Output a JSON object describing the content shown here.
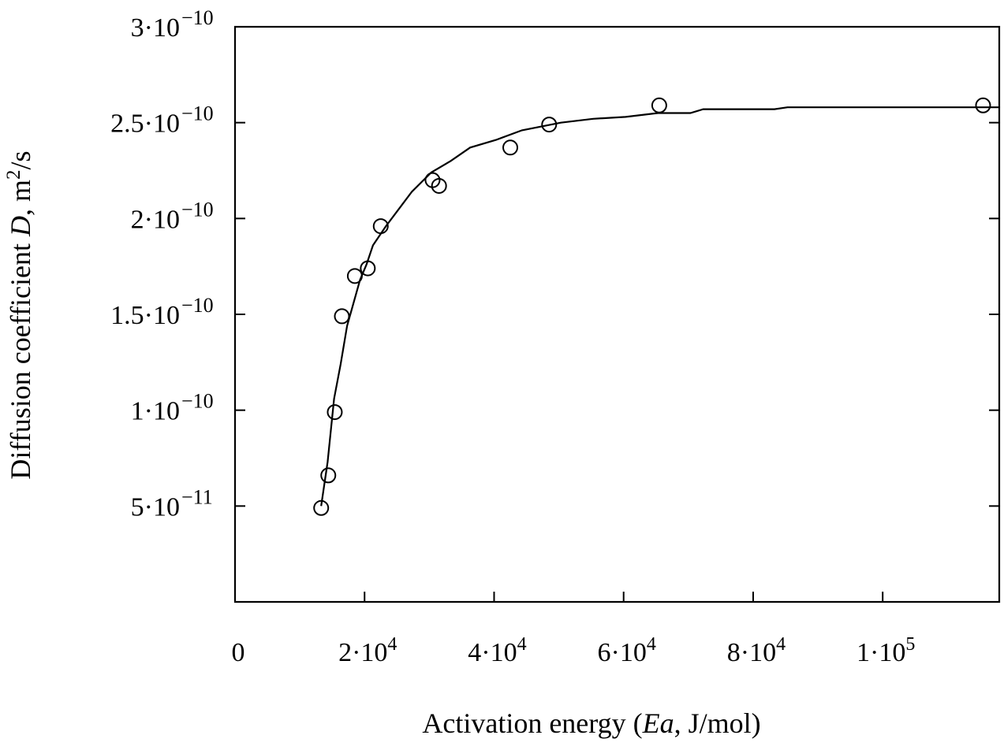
{
  "chart_data": {
    "type": "scatter",
    "title": "",
    "xlabel": "Activation energy (Ea, J/mol)",
    "ylabel": "Diffusion coefficient D, m²/s",
    "xlim": [
      0,
      118000
    ],
    "ylim": [
      0,
      3e-10
    ],
    "grid": false,
    "x_ticks": [
      {
        "value": 0,
        "label": "0"
      },
      {
        "value": 20000,
        "label": "2·10⁴"
      },
      {
        "value": 40000,
        "label": "4·10⁴"
      },
      {
        "value": 60000,
        "label": "6·10⁴"
      },
      {
        "value": 80000,
        "label": "8·10⁴"
      },
      {
        "value": 100000,
        "label": "1·10⁵"
      }
    ],
    "y_ticks": [
      {
        "value": 5e-11,
        "label": "5·10⁻¹¹"
      },
      {
        "value": 1e-10,
        "label": "1·10⁻¹⁰"
      },
      {
        "value": 1.5e-10,
        "label": "1.5·10⁻¹⁰"
      },
      {
        "value": 2e-10,
        "label": "2·10⁻¹⁰"
      },
      {
        "value": 2.5e-10,
        "label": "2.5·10⁻¹⁰"
      },
      {
        "value": 3e-10,
        "label": "3·10⁻¹⁰"
      }
    ],
    "series": [
      {
        "kind": "points",
        "marker": "open-circle",
        "points": [
          [
            13300,
            4.9e-11
          ],
          [
            14400,
            6.6e-11
          ],
          [
            15400,
            9.9e-11
          ],
          [
            16500,
            1.49e-10
          ],
          [
            18500,
            1.7e-10
          ],
          [
            20500,
            1.74e-10
          ],
          [
            22500,
            1.96e-10
          ],
          [
            30500,
            2.2e-10
          ],
          [
            31500,
            2.17e-10
          ],
          [
            42500,
            2.37e-10
          ],
          [
            48500,
            2.49e-10
          ],
          [
            65500,
            2.59e-10
          ],
          [
            115500,
            2.59e-10
          ]
        ]
      },
      {
        "kind": "line",
        "points": [
          [
            13300,
            5e-11
          ],
          [
            14300,
            7.3e-11
          ],
          [
            15300,
            1.06e-10
          ],
          [
            16300,
            1.24e-10
          ],
          [
            17300,
            1.44e-10
          ],
          [
            18300,
            1.56e-10
          ],
          [
            19300,
            1.68e-10
          ],
          [
            20300,
            1.76e-10
          ],
          [
            21300,
            1.86e-10
          ],
          [
            23300,
            1.96e-10
          ],
          [
            25300,
            2.05e-10
          ],
          [
            27300,
            2.14e-10
          ],
          [
            30300,
            2.24e-10
          ],
          [
            33300,
            2.3e-10
          ],
          [
            36300,
            2.37e-10
          ],
          [
            40300,
            2.41e-10
          ],
          [
            44300,
            2.46e-10
          ],
          [
            50300,
            2.5e-10
          ],
          [
            55300,
            2.52e-10
          ],
          [
            60300,
            2.53e-10
          ],
          [
            65300,
            2.55e-10
          ],
          [
            70300,
            2.55e-10
          ],
          [
            72300,
            2.57e-10
          ],
          [
            83300,
            2.57e-10
          ],
          [
            85300,
            2.58e-10
          ],
          [
            118000,
            2.58e-10
          ]
        ]
      }
    ]
  }
}
